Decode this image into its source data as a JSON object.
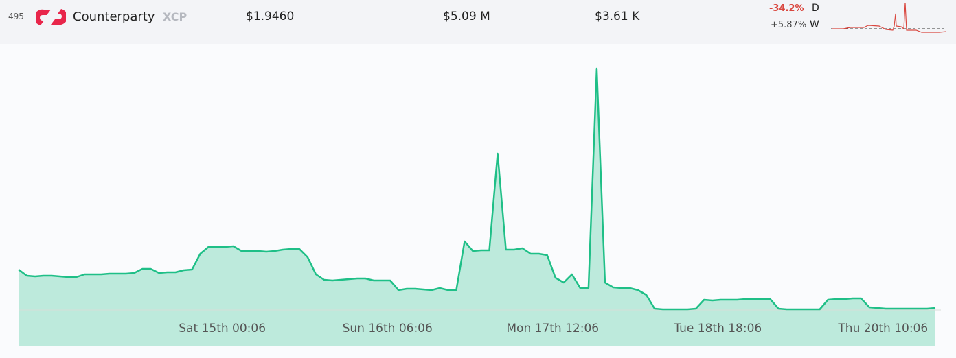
{
  "header": {
    "rank": "495",
    "name": "Counterparty",
    "symbol": "XCP",
    "price": "$1.9460",
    "market_cap": "$5.09 M",
    "volume": "$3.61 K",
    "change_day": "-34.2%",
    "day_label": "D",
    "change_week": "+5.87%",
    "week_label": "W"
  },
  "chart_data": {
    "type": "area",
    "color": "#1fbf87",
    "categories": [
      null,
      null,
      null,
      null,
      null,
      null,
      null,
      null,
      null,
      null,
      null,
      null,
      null,
      null,
      null,
      null,
      null,
      null,
      null,
      null,
      null,
      null,
      null,
      null,
      null,
      "Sat 15th 00:06",
      null,
      null,
      null,
      null,
      null,
      null,
      null,
      null,
      null,
      null,
      null,
      null,
      null,
      null,
      null,
      null,
      null,
      null,
      null,
      "Sun 16th 06:06",
      null,
      null,
      null,
      null,
      null,
      null,
      null,
      null,
      null,
      null,
      null,
      null,
      null,
      null,
      null,
      null,
      null,
      null,
      null,
      "Mon 17th 12:06",
      null,
      null,
      null,
      null,
      null,
      null,
      null,
      null,
      null,
      null,
      null,
      null,
      null,
      null,
      null,
      null,
      null,
      null,
      null,
      "Tue 18th 18:06",
      null,
      null,
      null,
      null,
      null,
      null,
      null,
      null,
      null,
      null,
      null,
      null,
      null,
      null,
      null,
      null,
      null,
      null,
      null,
      "Thu 20th 10:06",
      null,
      null,
      null,
      null,
      null,
      null
    ],
    "values": [
      59,
      50,
      49,
      50,
      50,
      49,
      48,
      48,
      52,
      52,
      52,
      53,
      53,
      53,
      54,
      60,
      60,
      54,
      55,
      55,
      58,
      59,
      82,
      92,
      92,
      92,
      93,
      86,
      86,
      86,
      85,
      86,
      88,
      89,
      89,
      77,
      52,
      44,
      43,
      44,
      45,
      46,
      46,
      43,
      43,
      43,
      29,
      31,
      31,
      30,
      29,
      32,
      29,
      29,
      100,
      86,
      87,
      87,
      228,
      88,
      88,
      90,
      82,
      82,
      80,
      47,
      40,
      52,
      32,
      32,
      352,
      40,
      33,
      32,
      32,
      29,
      22,
      2,
      1,
      1,
      1,
      1,
      2,
      15,
      14,
      15,
      15,
      15,
      16,
      16,
      16,
      16,
      2,
      1,
      1,
      1,
      1,
      1,
      15,
      16,
      16,
      17,
      17,
      4,
      3,
      2,
      2,
      2,
      2,
      2,
      2,
      3
    ]
  }
}
